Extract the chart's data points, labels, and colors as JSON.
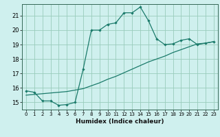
{
  "xlabel": "Humidex (Indice chaleur)",
  "bg_color": "#cff0ee",
  "grid_color": "#99ccbb",
  "line_color": "#1a7a6a",
  "xlim": [
    -0.5,
    23.5
  ],
  "ylim": [
    14.5,
    21.8
  ],
  "xticks": [
    0,
    1,
    2,
    3,
    4,
    5,
    6,
    7,
    8,
    9,
    10,
    11,
    12,
    13,
    14,
    15,
    16,
    17,
    18,
    19,
    20,
    21,
    22,
    23
  ],
  "yticks": [
    15,
    16,
    17,
    18,
    19,
    20,
    21
  ],
  "curve1_x": [
    0,
    1,
    2,
    3,
    4,
    5,
    6,
    7,
    8,
    9,
    10,
    11,
    12,
    13,
    14,
    15,
    16,
    17,
    18,
    19,
    20,
    21,
    22,
    23
  ],
  "curve1_y": [
    15.8,
    15.7,
    15.1,
    15.1,
    14.8,
    14.85,
    15.0,
    17.3,
    20.0,
    20.0,
    20.4,
    20.5,
    21.2,
    21.2,
    21.6,
    20.65,
    19.4,
    19.0,
    19.05,
    19.3,
    19.4,
    19.0,
    19.1,
    19.2
  ],
  "curve2_x": [
    0,
    1,
    2,
    3,
    4,
    5,
    6,
    7,
    8,
    9,
    10,
    11,
    12,
    13,
    14,
    15,
    16,
    17,
    18,
    19,
    20,
    21,
    22,
    23
  ],
  "curve2_y": [
    15.5,
    15.55,
    15.6,
    15.65,
    15.7,
    15.75,
    15.85,
    15.95,
    16.15,
    16.35,
    16.6,
    16.8,
    17.05,
    17.3,
    17.55,
    17.8,
    18.0,
    18.2,
    18.45,
    18.65,
    18.85,
    19.05,
    19.1,
    19.2
  ]
}
